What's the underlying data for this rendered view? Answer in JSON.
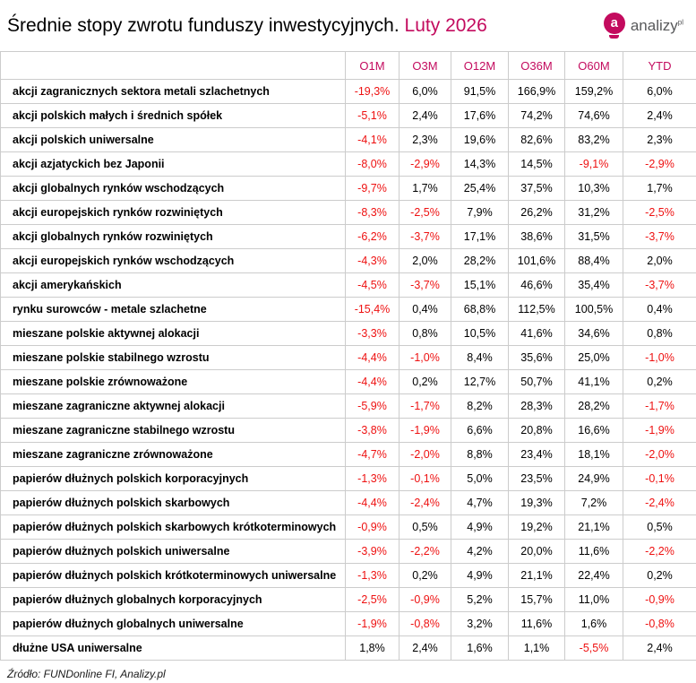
{
  "header": {
    "title_main": "Średnie stopy zwrotu funduszy inwestycyjnych.",
    "title_accent": "Luty 2026",
    "logo": {
      "icon": "analizy-badge-a-icon",
      "badge_letter": "a",
      "text": "analizy",
      "superscript": "pl"
    }
  },
  "chart_data": {
    "type": "table",
    "title": "Średnie stopy zwrotu funduszy inwestycyjnych. Luty 2026",
    "columns": [
      "O1M",
      "O3M",
      "O12M",
      "O36M",
      "O60M",
      "YTD"
    ],
    "rows": [
      {
        "name": "akcji zagranicznych sektora metali szlachetnych",
        "values": [
          "-19,3%",
          "6,0%",
          "91,5%",
          "166,9%",
          "159,2%",
          "6,0%"
        ]
      },
      {
        "name": "akcji polskich małych i średnich spółek",
        "values": [
          "-5,1%",
          "2,4%",
          "17,6%",
          "74,2%",
          "74,6%",
          "2,4%"
        ]
      },
      {
        "name": "akcji polskich uniwersalne",
        "values": [
          "-4,1%",
          "2,3%",
          "19,6%",
          "82,6%",
          "83,2%",
          "2,3%"
        ]
      },
      {
        "name": "akcji azjatyckich bez Japonii",
        "values": [
          "-8,0%",
          "-2,9%",
          "14,3%",
          "14,5%",
          "-9,1%",
          "-2,9%"
        ]
      },
      {
        "name": "akcji globalnych rynków wschodzących",
        "values": [
          "-9,7%",
          "1,7%",
          "25,4%",
          "37,5%",
          "10,3%",
          "1,7%"
        ]
      },
      {
        "name": "akcji europejskich rynków rozwiniętych",
        "values": [
          "-8,3%",
          "-2,5%",
          "7,9%",
          "26,2%",
          "31,2%",
          "-2,5%"
        ]
      },
      {
        "name": "akcji globalnych rynków rozwiniętych",
        "values": [
          "-6,2%",
          "-3,7%",
          "17,1%",
          "38,6%",
          "31,5%",
          "-3,7%"
        ]
      },
      {
        "name": "akcji europejskich rynków wschodzących",
        "values": [
          "-4,3%",
          "2,0%",
          "28,2%",
          "101,6%",
          "88,4%",
          "2,0%"
        ]
      },
      {
        "name": "akcji amerykańskich",
        "values": [
          "-4,5%",
          "-3,7%",
          "15,1%",
          "46,6%",
          "35,4%",
          "-3,7%"
        ]
      },
      {
        "name": "rynku surowców - metale szlachetne",
        "values": [
          "-15,4%",
          "0,4%",
          "68,8%",
          "112,5%",
          "100,5%",
          "0,4%"
        ]
      },
      {
        "name": "mieszane polskie aktywnej alokacji",
        "values": [
          "-3,3%",
          "0,8%",
          "10,5%",
          "41,6%",
          "34,6%",
          "0,8%"
        ]
      },
      {
        "name": "mieszane polskie stabilnego wzrostu",
        "values": [
          "-4,4%",
          "-1,0%",
          "8,4%",
          "35,6%",
          "25,0%",
          "-1,0%"
        ]
      },
      {
        "name": "mieszane polskie zrównoważone",
        "values": [
          "-4,4%",
          "0,2%",
          "12,7%",
          "50,7%",
          "41,1%",
          "0,2%"
        ]
      },
      {
        "name": "mieszane zagraniczne aktywnej alokacji",
        "values": [
          "-5,9%",
          "-1,7%",
          "8,2%",
          "28,3%",
          "28,2%",
          "-1,7%"
        ]
      },
      {
        "name": "mieszane zagraniczne stabilnego wzrostu",
        "values": [
          "-3,8%",
          "-1,9%",
          "6,6%",
          "20,8%",
          "16,6%",
          "-1,9%"
        ]
      },
      {
        "name": "mieszane zagraniczne zrównoważone",
        "values": [
          "-4,7%",
          "-2,0%",
          "8,8%",
          "23,4%",
          "18,1%",
          "-2,0%"
        ]
      },
      {
        "name": "papierów dłużnych polskich korporacyjnych",
        "values": [
          "-1,3%",
          "-0,1%",
          "5,0%",
          "23,5%",
          "24,9%",
          "-0,1%"
        ]
      },
      {
        "name": "papierów dłużnych polskich skarbowych",
        "values": [
          "-4,4%",
          "-2,4%",
          "4,7%",
          "19,3%",
          "7,2%",
          "-2,4%"
        ]
      },
      {
        "name": "papierów dłużnych polskich skarbowych krótkoterminowych",
        "values": [
          "-0,9%",
          "0,5%",
          "4,9%",
          "19,2%",
          "21,1%",
          "0,5%"
        ]
      },
      {
        "name": "papierów dłużnych polskich uniwersalne",
        "values": [
          "-3,9%",
          "-2,2%",
          "4,2%",
          "20,0%",
          "11,6%",
          "-2,2%"
        ]
      },
      {
        "name": "papierów dłużnych polskich krótkoterminowych uniwersalne",
        "values": [
          "-1,3%",
          "0,2%",
          "4,9%",
          "21,1%",
          "22,4%",
          "0,2%"
        ]
      },
      {
        "name": "papierów dłużnych globalnych korporacyjnych",
        "values": [
          "-2,5%",
          "-0,9%",
          "5,2%",
          "15,7%",
          "11,0%",
          "-0,9%"
        ]
      },
      {
        "name": "papierów dłużnych globalnych uniwersalne",
        "values": [
          "-1,9%",
          "-0,8%",
          "3,2%",
          "11,6%",
          "1,6%",
          "-0,8%"
        ]
      },
      {
        "name": "dłużne USA uniwersalne",
        "values": [
          "1,8%",
          "2,4%",
          "1,6%",
          "1,1%",
          "-5,5%",
          "2,4%"
        ]
      }
    ],
    "value_color_rule": "negative values shown in red, others in black",
    "legend_position": "none",
    "grid": true
  },
  "footer": {
    "source": "Źródło: FUNDonline FI, Analizy.pl"
  },
  "colors": {
    "accent": "#c30b5e",
    "negative": "#ee1111",
    "positive": "#000000",
    "border": "#cccccc"
  }
}
